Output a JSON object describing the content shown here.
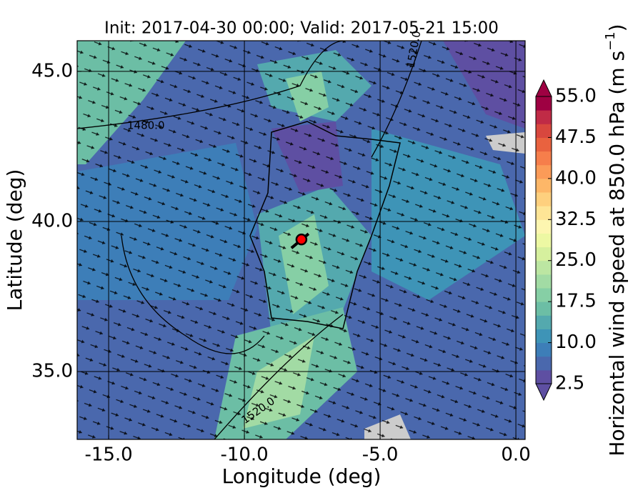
{
  "chart_data": {
    "type": "map",
    "title": "Init: 2017-04-30 00:00; Valid: 2017-05-21 15:00",
    "x_label": "Longitude (deg)",
    "y_label": "Latitude (deg)",
    "xlim": [
      -16.16,
      0.34
    ],
    "ylim": [
      32.74,
      46.02
    ],
    "xticks": [
      {
        "value": -15,
        "label": "-15.0"
      },
      {
        "value": -10,
        "label": "-10.0"
      },
      {
        "value": -5,
        "label": "-5.0"
      },
      {
        "value": 0,
        "label": "0.0"
      }
    ],
    "yticks": [
      {
        "value": 35,
        "label": "35.0"
      },
      {
        "value": 40,
        "label": "40.0"
      },
      {
        "value": 45,
        "label": "45.0"
      }
    ],
    "grid": true,
    "marker": {
      "x": -7.9,
      "y": 39.4,
      "color": "#ff0000"
    },
    "contour_labels": [
      "1480.0",
      "1520.0",
      "1520.0"
    ],
    "colorbar": {
      "label": [
        "Horizontal wind speed at 850.0 hPa (m s",
        "−1",
        ")"
      ],
      "clim": [
        2.5,
        55
      ],
      "ticks": [
        2.5,
        {
          "value": 10,
          "label": "10.0"
        },
        {
          "value": 17.5,
          "label": "17.5"
        },
        {
          "value": 25,
          "label": "25.0"
        },
        {
          "value": 32.5,
          "label": "32.5"
        },
        {
          "value": 40,
          "label": "40.0"
        },
        {
          "value": 47.5,
          "label": "47.5"
        },
        {
          "value": 55,
          "label": "55.0"
        }
      ],
      "colors": [
        "#5e4fa2",
        "#4a68ad",
        "#3d7eb8",
        "#3e94b7",
        "#54a9ae",
        "#6cbea5",
        "#86cfa5",
        "#a2dba4",
        "#bce6a2",
        "#d6f09e",
        "#edf8a3",
        "#fdf6b0",
        "#fee596",
        "#fed07e",
        "#fdb768",
        "#fb9b58",
        "#f67e4b",
        "#e9623f",
        "#d8473e",
        "#c02b46",
        "#9e0142"
      ]
    }
  }
}
